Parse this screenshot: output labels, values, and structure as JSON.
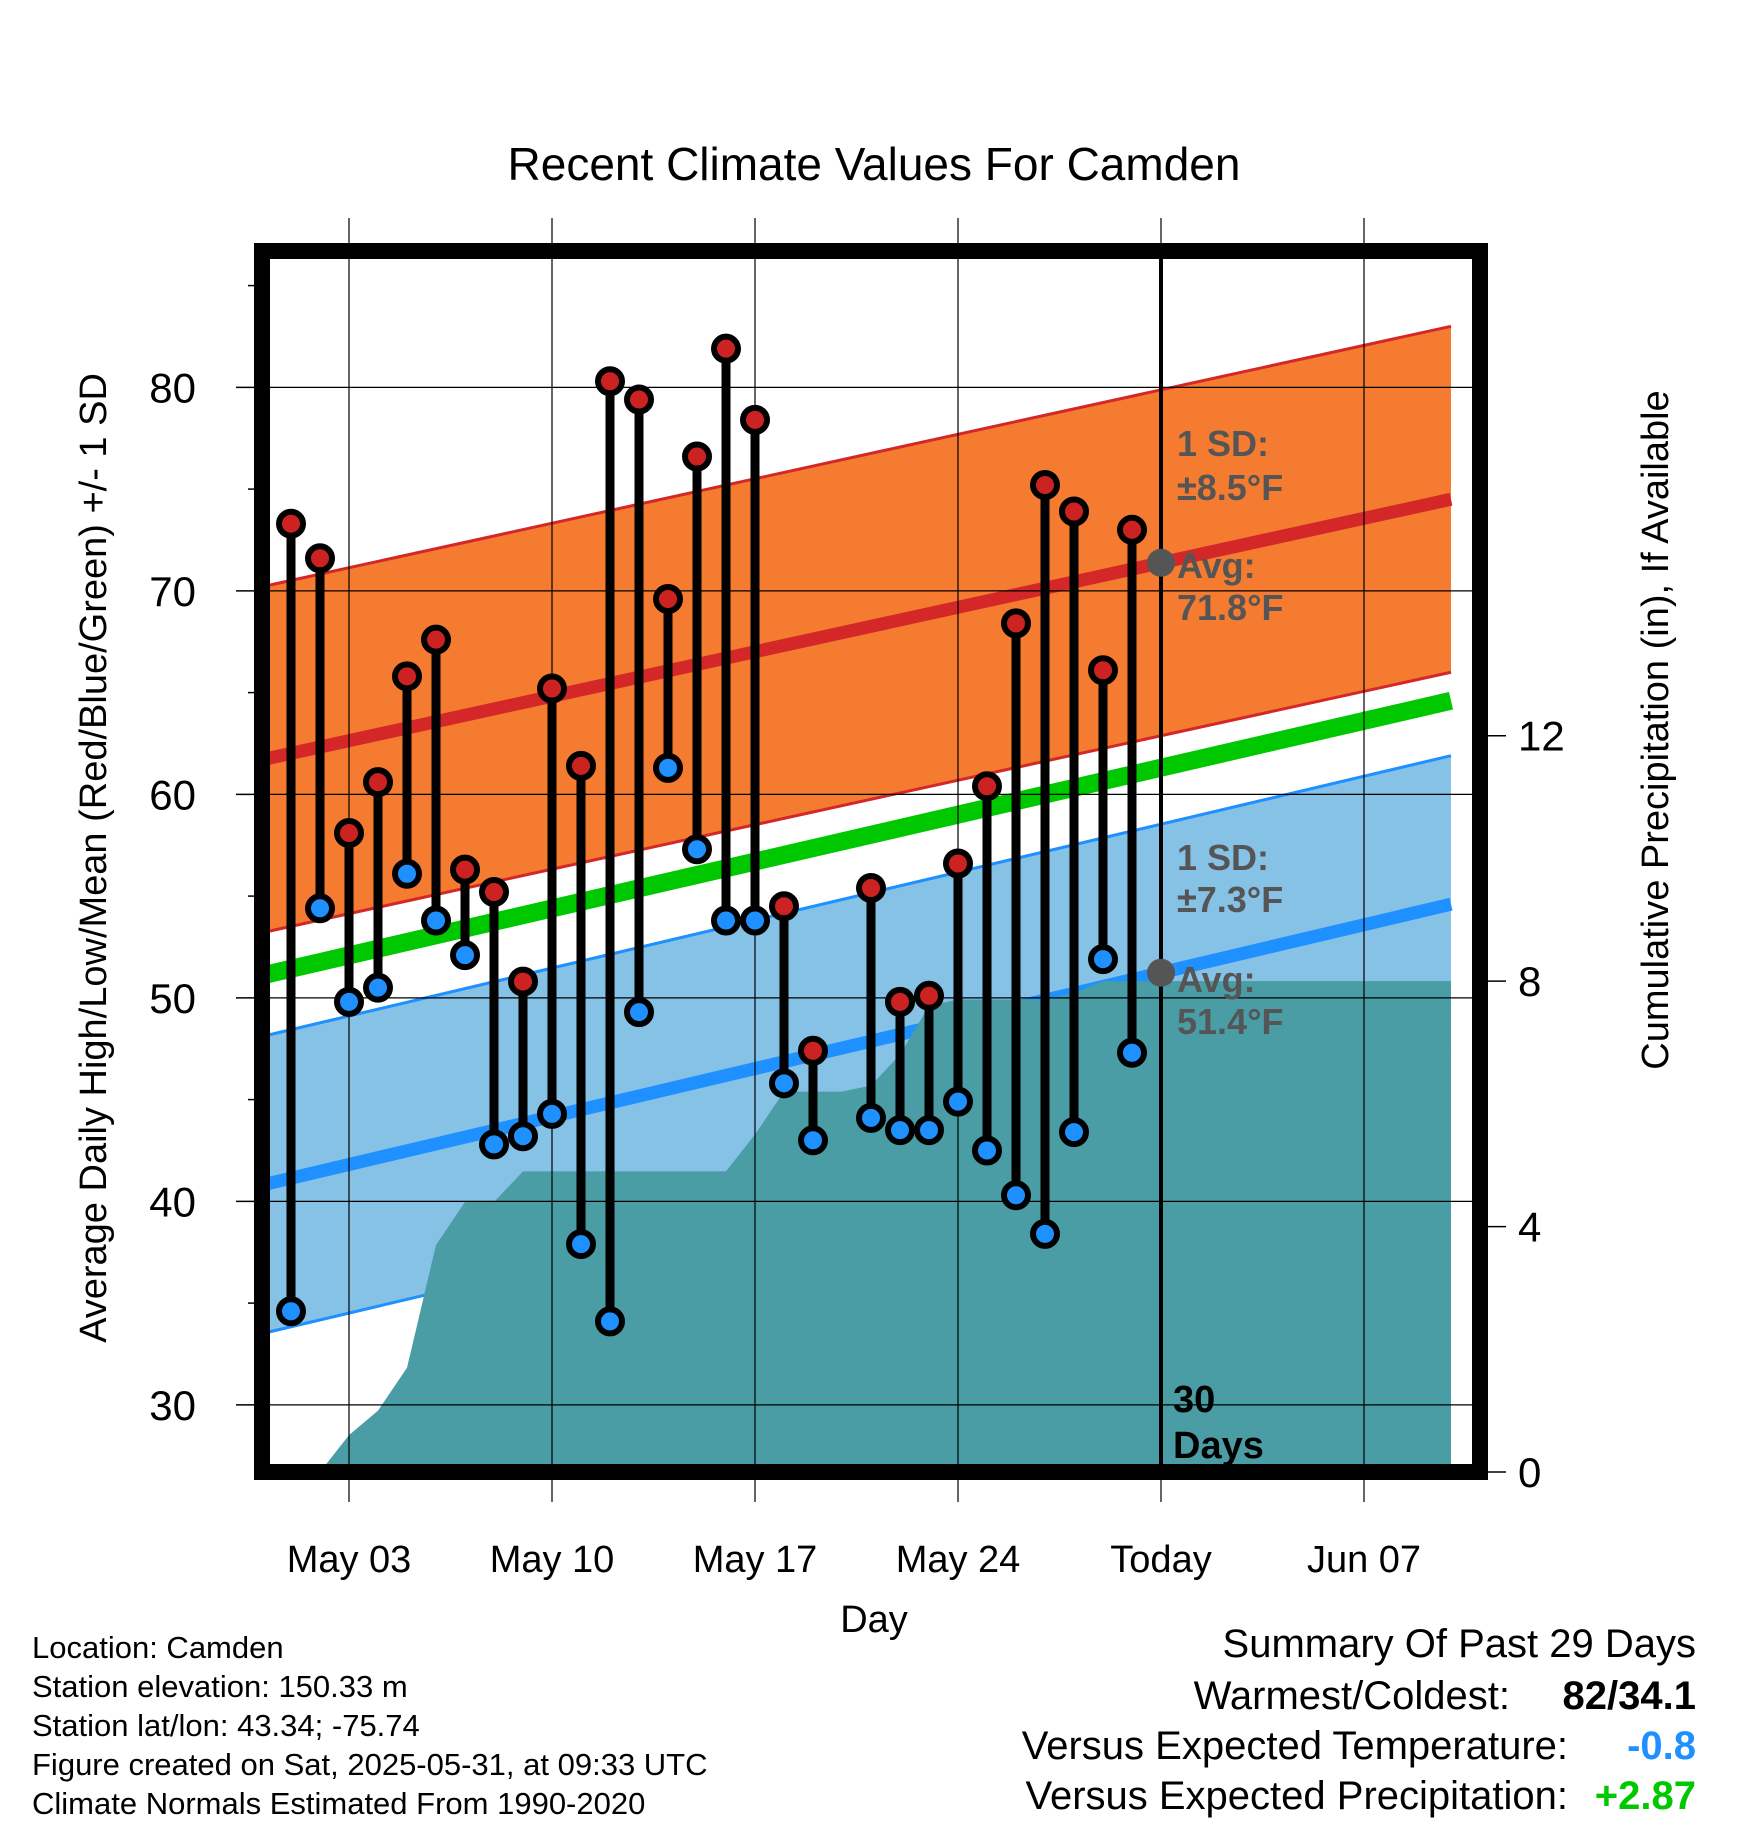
{
  "chart_data": {
    "type": "line",
    "title": "Recent Climate Values For Camden",
    "xlabel": "Day",
    "ylabel": "Average Daily High/Low/Mean (Red/Blue/Green) +/- 1 SD",
    "y2label": "Cumulative Precipitation (in), If Available",
    "x_tick_labels": [
      "May 03",
      "May 10",
      "May 17",
      "May 24",
      "Today",
      "Jun 07"
    ],
    "y_ticks": [
      30,
      40,
      50,
      60,
      70,
      80
    ],
    "y2_ticks": [
      0,
      4,
      8,
      12
    ],
    "ylim": [
      26.7,
      86.7
    ],
    "y2lim": [
      0,
      19.9
    ],
    "x_day_range": [
      0,
      42
    ],
    "today_day": 31,
    "today_label": "30\nDays",
    "series": [
      {
        "name": "High",
        "color": "#cc2222",
        "day": [
          1,
          2,
          3,
          4,
          5,
          6,
          7,
          8,
          9,
          10,
          11,
          12,
          13,
          14,
          15,
          16,
          17,
          18,
          19,
          21,
          22,
          23,
          24,
          25,
          26,
          27,
          28,
          29,
          30
        ],
        "values": [
          73.3,
          71.6,
          58.1,
          60.6,
          65.8,
          67.6,
          56.3,
          55.2,
          50.8,
          65.2,
          61.4,
          80.3,
          79.4,
          69.6,
          76.6,
          81.9,
          78.4,
          54.5,
          47.4,
          55.4,
          49.8,
          50.1,
          56.6,
          60.4,
          68.4,
          75.2,
          73.9,
          66.1,
          73.0
        ]
      },
      {
        "name": "Low",
        "color": "#1e90ff",
        "day": [
          1,
          2,
          3,
          4,
          5,
          6,
          7,
          8,
          9,
          10,
          11,
          12,
          13,
          14,
          15,
          16,
          17,
          18,
          19,
          21,
          22,
          23,
          24,
          25,
          26,
          27,
          28,
          29,
          30
        ],
        "values": [
          34.6,
          54.4,
          49.8,
          50.5,
          56.1,
          53.8,
          52.1,
          42.8,
          43.2,
          44.3,
          37.9,
          34.1,
          49.3,
          61.3,
          57.3,
          53.8,
          53.8,
          45.8,
          43.0,
          44.1,
          43.5,
          43.5,
          44.9,
          42.5,
          40.3,
          38.4,
          43.4,
          51.9,
          47.3
        ]
      },
      {
        "name": "Mean",
        "color": "#00c800",
        "day": [
          0,
          41
        ],
        "values": [
          51.1,
          64.6
        ]
      }
    ],
    "bands": [
      {
        "name": "High normal",
        "fill": "#f47b30",
        "line": "#d42828",
        "day": [
          0,
          41
        ],
        "mean": [
          61.7,
          74.5
        ],
        "sd": 8.5
      },
      {
        "name": "Low normal",
        "fill": "#86c1e6",
        "line": "#1e90ff",
        "day": [
          0,
          41
        ],
        "mean": [
          40.8,
          54.6
        ],
        "sd": 7.3
      }
    ],
    "precipitation": {
      "color": "#4a9ca5",
      "day": [
        1,
        2,
        3,
        4,
        5,
        6,
        7,
        8,
        9,
        10,
        11,
        12,
        13,
        14,
        15,
        16,
        17,
        18,
        19,
        20,
        21,
        22,
        23,
        24,
        25,
        26,
        27,
        28,
        29,
        30,
        31,
        32,
        33,
        34,
        35,
        36,
        37,
        38,
        39,
        40,
        41
      ],
      "values": [
        0,
        0,
        0.6,
        1.0,
        1.7,
        3.7,
        4.4,
        4.4,
        4.9,
        4.9,
        4.9,
        4.9,
        4.9,
        4.9,
        4.9,
        4.9,
        5.5,
        6.2,
        6.2,
        6.2,
        6.3,
        6.8,
        7.6,
        7.7,
        7.7,
        7.7,
        7.7,
        7.8,
        8.0,
        8.0,
        8.0,
        8.0,
        8.0,
        8.0,
        8.0,
        8.0,
        8.0,
        8.0,
        8.0,
        8.0,
        8.0
      ]
    },
    "annotations": [
      {
        "line1": "1 SD:",
        "line2": "±8.5°F"
      },
      {
        "line1": "Avg:",
        "line2": "71.8°F",
        "value": 71.8
      },
      {
        "line1": "1 SD:",
        "line2": "±7.3°F"
      },
      {
        "line1": "Avg:",
        "line2": "51.4°F",
        "value": 51.4
      }
    ],
    "grid": true
  },
  "info": {
    "location": "Location: Camden",
    "elevation": "Station elevation: 150.33 m",
    "latlon": "Station lat/lon: 43.34; -75.74",
    "created": "Figure created on Sat, 2025-05-31, at 09:33 UTC",
    "normals": "Climate Normals Estimated From 1990-2020"
  },
  "summary": {
    "title": "Summary Of Past 29 Days",
    "warmest_label": "Warmest/Coldest:",
    "warmest_value": "82/34.1",
    "temp_label": "Versus Expected Temperature:",
    "temp_value": "-0.8",
    "temp_color": "#1e90ff",
    "precip_label": "Versus Expected Precipitation:",
    "precip_value": "+2.87",
    "precip_color": "#00c800"
  }
}
